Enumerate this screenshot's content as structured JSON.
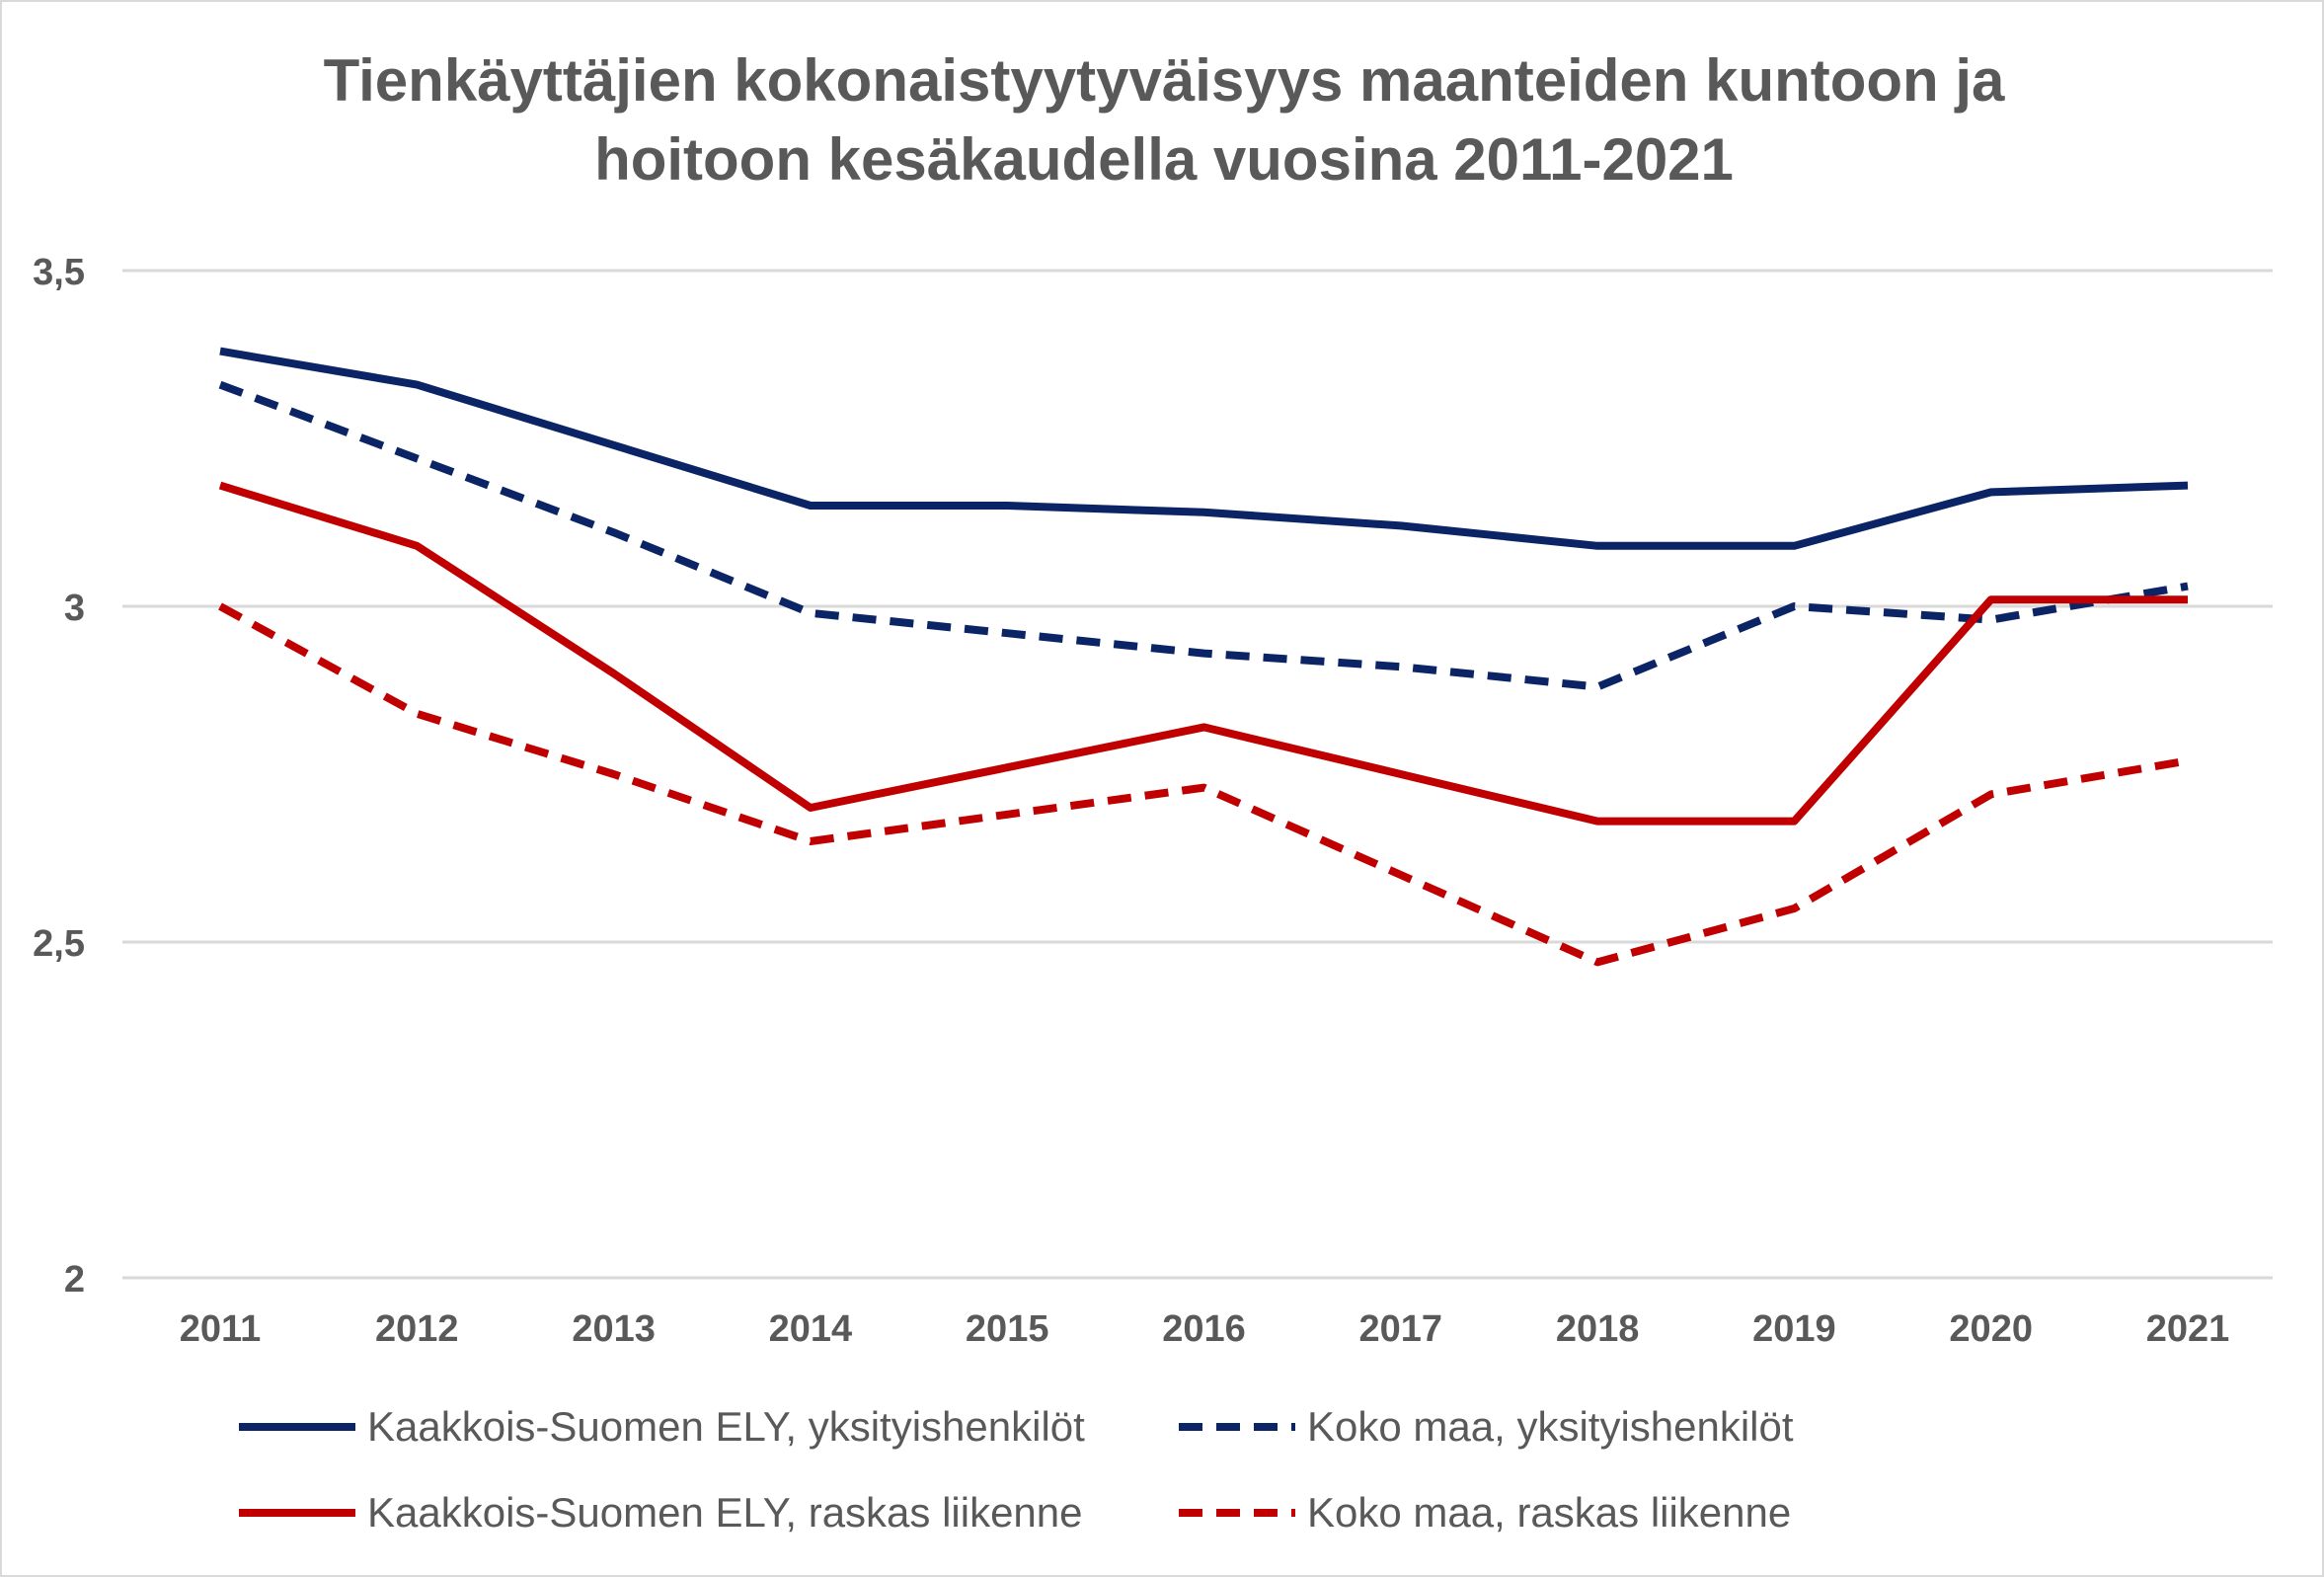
{
  "colors": {
    "navy": "#0b2466",
    "red": "#c00000",
    "grid": "#d9d9d9",
    "text": "#595959"
  },
  "chart_data": {
    "type": "line",
    "title": "Tienkäyttäjien kokonaistyytyväisyys maanteiden kuntoon ja hoitoon kesäkaudella vuosina 2011-2021",
    "title_lines": [
      "Tienkäyttäjien kokonaistyytyväisyys maanteiden kuntoon ja",
      "hoitoon kesäkaudella vuosina 2011-2021"
    ],
    "xlabel": "",
    "ylabel": "",
    "categories": [
      "2011",
      "2012",
      "2013",
      "2014",
      "2015",
      "2016",
      "2017",
      "2018",
      "2019",
      "2020",
      "2021"
    ],
    "ylim": [
      2,
      3.5
    ],
    "yticks": [
      2,
      2.5,
      3,
      3.5
    ],
    "ytick_labels": [
      "2",
      "2,5",
      "3",
      "3,5"
    ],
    "grid": true,
    "legend_position": "bottom",
    "series": [
      {
        "name": "Kaakkois-Suomen ELY, yksityishenkilöt",
        "color": "#0b2466",
        "style": "solid",
        "values": [
          3.38,
          3.33,
          3.24,
          3.15,
          3.15,
          3.14,
          3.12,
          3.09,
          3.09,
          3.17,
          3.18
        ]
      },
      {
        "name": "Koko maa, yksityishenkilöt",
        "color": "#0b2466",
        "style": "dashed",
        "values": [
          3.33,
          3.22,
          3.11,
          2.99,
          2.96,
          2.93,
          2.91,
          2.88,
          3.0,
          2.98,
          3.03
        ]
      },
      {
        "name": "Kaakkois-Suomen ELY, raskas liikenne",
        "color": "#c00000",
        "style": "solid",
        "values": [
          3.18,
          3.09,
          2.9,
          2.7,
          2.76,
          2.82,
          2.75,
          2.68,
          2.68,
          3.01,
          3.01
        ]
      },
      {
        "name": "Koko maa, raskas liikenne",
        "color": "#c00000",
        "style": "dashed",
        "values": [
          3.0,
          2.84,
          2.75,
          2.65,
          2.69,
          2.73,
          2.6,
          2.47,
          2.55,
          2.72,
          2.77
        ]
      }
    ]
  }
}
